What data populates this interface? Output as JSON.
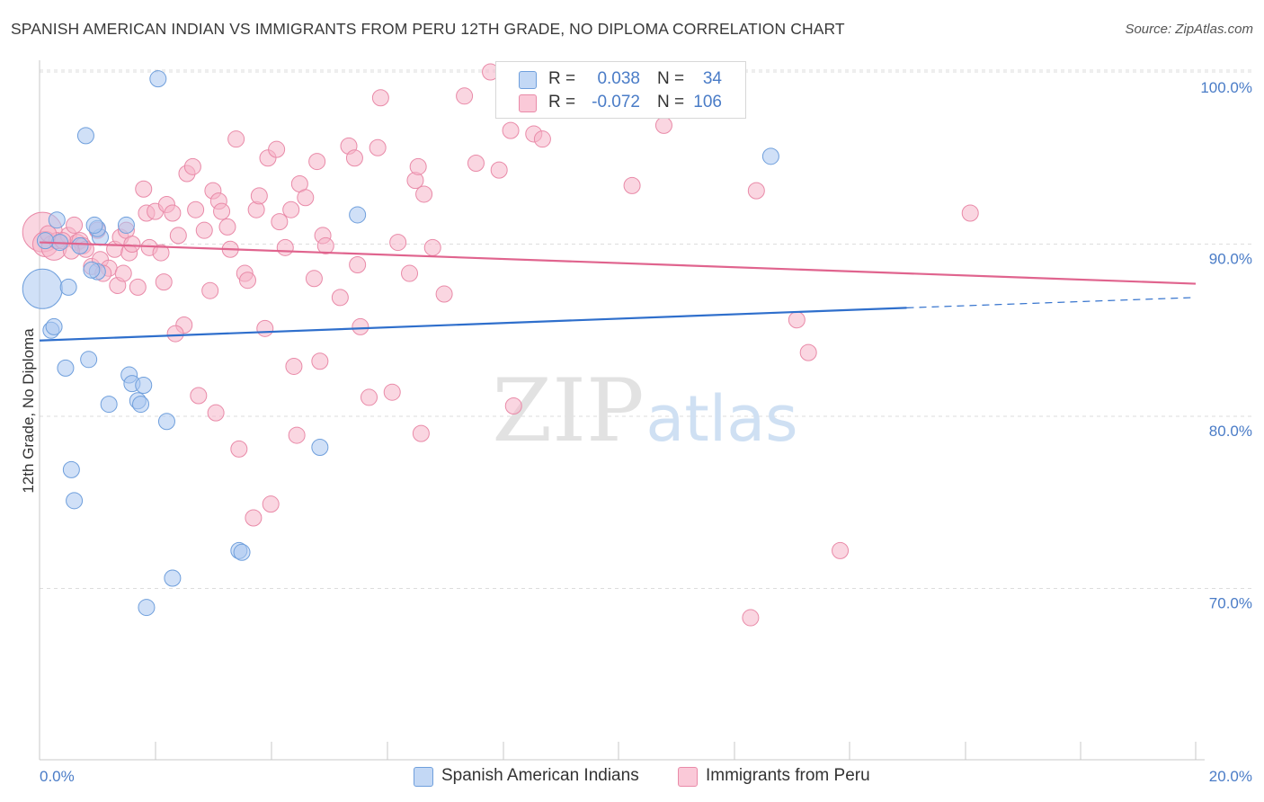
{
  "header": {
    "title": "SPANISH AMERICAN INDIAN VS IMMIGRANTS FROM PERU 12TH GRADE, NO DIPLOMA CORRELATION CHART",
    "source": "Source: ZipAtlas.com"
  },
  "watermark": {
    "zip": "ZIP",
    "atlas": "atlas"
  },
  "legend": {
    "rows": [
      {
        "r_label": "R =",
        "r_value": "0.038",
        "n_label": "N =",
        "n_value": "34",
        "color": "#a9c7f0"
      },
      {
        "r_label": "R =",
        "r_value": "-0.072",
        "n_label": "N =",
        "n_value": "106",
        "color": "#f6b5c9"
      }
    ]
  },
  "bottom_legend": {
    "series1": "Spanish American Indians",
    "series2": "Immigrants from Peru"
  },
  "colors": {
    "blue_fill": "#a9c7f0",
    "blue_stroke": "#6f9fdc",
    "blue_line": "#2f6fcc",
    "pink_fill": "#f6b5c9",
    "pink_stroke": "#e98aa8",
    "pink_line": "#e0648e",
    "axis_text": "#4a7cc7",
    "grid": "#dddddd"
  },
  "chart_data": {
    "type": "scatter",
    "title": "SPANISH AMERICAN INDIAN VS IMMIGRANTS FROM PERU 12TH GRADE, NO DIPLOMA CORRELATION CHART",
    "xlabel": "",
    "ylabel": "12th Grade, No Diploma",
    "xlim": [
      0,
      20
    ],
    "ylim": [
      60,
      102
    ],
    "x_tick_labels": [
      "0.0%",
      "20.0%"
    ],
    "y_ticks": [
      70,
      80,
      90,
      100
    ],
    "y_tick_labels": [
      "70.0%",
      "80.0%",
      "90.0%",
      "100.0%"
    ],
    "grid": true,
    "legend_position": "top-center",
    "series": [
      {
        "name": "Spanish American Indians",
        "color": "#a9c7f0",
        "trend": {
          "x": [
            0,
            15
          ],
          "y": [
            84.4,
            86.3
          ],
          "dashed_to": [
            20,
            86.9
          ]
        },
        "points": [
          [
            0.05,
            87.4,
            22
          ],
          [
            0.3,
            91.4,
            9
          ],
          [
            0.5,
            87.5,
            9
          ],
          [
            0.35,
            90.1,
            9
          ],
          [
            0.2,
            85.0,
            9
          ],
          [
            0.25,
            85.2,
            9
          ],
          [
            0.45,
            82.8,
            9
          ],
          [
            0.8,
            96.3,
            9
          ],
          [
            1.0,
            88.4,
            9
          ],
          [
            0.9,
            88.5,
            9
          ],
          [
            1.05,
            90.4,
            9
          ],
          [
            1.0,
            90.9,
            9
          ],
          [
            0.95,
            91.1,
            9
          ],
          [
            0.7,
            89.9,
            9
          ],
          [
            0.85,
            83.3,
            9
          ],
          [
            1.5,
            91.1,
            9
          ],
          [
            1.55,
            82.4,
            9
          ],
          [
            1.6,
            81.9,
            9
          ],
          [
            1.8,
            81.8,
            9
          ],
          [
            1.7,
            80.9,
            9
          ],
          [
            1.75,
            80.7,
            9
          ],
          [
            1.2,
            80.7,
            9
          ],
          [
            2.2,
            79.7,
            9
          ],
          [
            0.55,
            76.9,
            9
          ],
          [
            0.6,
            75.1,
            9
          ],
          [
            2.3,
            70.6,
            9
          ],
          [
            1.85,
            68.9,
            9
          ],
          [
            3.45,
            72.2,
            9
          ],
          [
            3.5,
            72.1,
            9
          ],
          [
            4.85,
            78.2,
            9
          ],
          [
            5.5,
            91.7,
            9
          ],
          [
            2.05,
            99.6,
            9
          ],
          [
            12.65,
            95.1,
            9
          ],
          [
            0.1,
            90.2,
            9
          ]
        ]
      },
      {
        "name": "Immigrants from Peru",
        "color": "#f6b5c9",
        "trend": {
          "x": [
            0,
            20
          ],
          "y": [
            90.1,
            87.7
          ]
        },
        "points": [
          [
            0.05,
            90.7,
            22
          ],
          [
            0.1,
            90.0,
            14
          ],
          [
            0.25,
            89.8,
            14
          ],
          [
            0.3,
            90.2,
            9
          ],
          [
            0.5,
            90.5,
            9
          ],
          [
            0.6,
            91.1,
            9
          ],
          [
            0.65,
            90.1,
            9
          ],
          [
            0.7,
            90.2,
            9
          ],
          [
            0.75,
            89.9,
            9
          ],
          [
            0.8,
            89.7,
            9
          ],
          [
            0.9,
            88.7,
            9
          ],
          [
            1.0,
            90.8,
            9
          ],
          [
            1.05,
            89.1,
            9
          ],
          [
            1.2,
            88.6,
            9
          ],
          [
            1.3,
            89.7,
            9
          ],
          [
            1.35,
            87.6,
            9
          ],
          [
            1.4,
            90.4,
            9
          ],
          [
            1.45,
            88.3,
            9
          ],
          [
            1.5,
            90.8,
            9
          ],
          [
            1.55,
            89.5,
            9
          ],
          [
            1.6,
            90.0,
            9
          ],
          [
            1.7,
            87.5,
            9
          ],
          [
            1.8,
            93.2,
            9
          ],
          [
            1.85,
            91.8,
            9
          ],
          [
            1.9,
            89.8,
            9
          ],
          [
            2.0,
            91.9,
            9
          ],
          [
            2.1,
            89.5,
            9
          ],
          [
            2.15,
            87.8,
            9
          ],
          [
            2.2,
            92.3,
            9
          ],
          [
            2.3,
            91.8,
            9
          ],
          [
            2.4,
            90.5,
            9
          ],
          [
            2.5,
            85.3,
            9
          ],
          [
            2.35,
            84.8,
            9
          ],
          [
            2.55,
            94.1,
            9
          ],
          [
            2.65,
            94.5,
            9
          ],
          [
            2.7,
            92.0,
            9
          ],
          [
            2.75,
            81.2,
            9
          ],
          [
            2.85,
            90.8,
            9
          ],
          [
            2.95,
            87.3,
            9
          ],
          [
            3.0,
            93.1,
            9
          ],
          [
            3.05,
            80.2,
            9
          ],
          [
            3.1,
            92.5,
            9
          ],
          [
            3.15,
            91.9,
            9
          ],
          [
            3.25,
            91.0,
            9
          ],
          [
            3.3,
            89.7,
            9
          ],
          [
            3.4,
            96.1,
            9
          ],
          [
            3.45,
            78.1,
            9
          ],
          [
            3.55,
            88.3,
            9
          ],
          [
            3.6,
            87.9,
            9
          ],
          [
            3.7,
            74.1,
            9
          ],
          [
            3.75,
            92.0,
            9
          ],
          [
            3.8,
            92.8,
            9
          ],
          [
            3.9,
            85.1,
            9
          ],
          [
            3.95,
            95.0,
            9
          ],
          [
            4.0,
            74.9,
            9
          ],
          [
            4.1,
            95.5,
            9
          ],
          [
            4.15,
            91.3,
            9
          ],
          [
            4.25,
            89.8,
            9
          ],
          [
            4.35,
            92.0,
            9
          ],
          [
            4.4,
            82.9,
            9
          ],
          [
            4.45,
            78.9,
            9
          ],
          [
            4.5,
            93.5,
            9
          ],
          [
            4.6,
            92.7,
            9
          ],
          [
            4.75,
            88.0,
            9
          ],
          [
            4.8,
            94.8,
            9
          ],
          [
            4.85,
            83.2,
            9
          ],
          [
            4.9,
            90.5,
            9
          ],
          [
            4.95,
            89.9,
            9
          ],
          [
            5.2,
            86.9,
            9
          ],
          [
            5.35,
            95.7,
            9
          ],
          [
            5.45,
            95.0,
            9
          ],
          [
            5.5,
            88.8,
            9
          ],
          [
            5.55,
            85.2,
            9
          ],
          [
            5.7,
            81.1,
            9
          ],
          [
            5.85,
            95.6,
            9
          ],
          [
            5.9,
            98.5,
            9
          ],
          [
            6.1,
            81.4,
            9
          ],
          [
            6.2,
            90.1,
            9
          ],
          [
            6.4,
            88.3,
            9
          ],
          [
            6.5,
            93.7,
            9
          ],
          [
            6.55,
            94.5,
            9
          ],
          [
            6.6,
            79.0,
            9
          ],
          [
            6.65,
            92.9,
            9
          ],
          [
            6.8,
            89.8,
            9
          ],
          [
            7.0,
            87.1,
            9
          ],
          [
            7.35,
            98.6,
            9
          ],
          [
            7.55,
            94.7,
            9
          ],
          [
            7.8,
            100.0,
            9
          ],
          [
            7.95,
            94.3,
            9
          ],
          [
            8.15,
            96.6,
            9
          ],
          [
            8.2,
            80.6,
            9
          ],
          [
            8.55,
            96.4,
            9
          ],
          [
            8.7,
            96.1,
            9
          ],
          [
            9.45,
            100.0,
            9
          ],
          [
            10.25,
            93.4,
            9
          ],
          [
            10.8,
            96.9,
            9
          ],
          [
            12.4,
            93.1,
            9
          ],
          [
            13.1,
            85.6,
            9
          ],
          [
            13.3,
            83.7,
            9
          ],
          [
            13.85,
            72.2,
            9
          ],
          [
            12.3,
            68.3,
            9
          ],
          [
            16.1,
            91.8,
            9
          ],
          [
            0.15,
            90.6,
            9
          ],
          [
            0.4,
            90.2,
            9
          ],
          [
            0.55,
            89.6,
            9
          ],
          [
            1.1,
            88.3,
            9
          ]
        ]
      }
    ]
  }
}
